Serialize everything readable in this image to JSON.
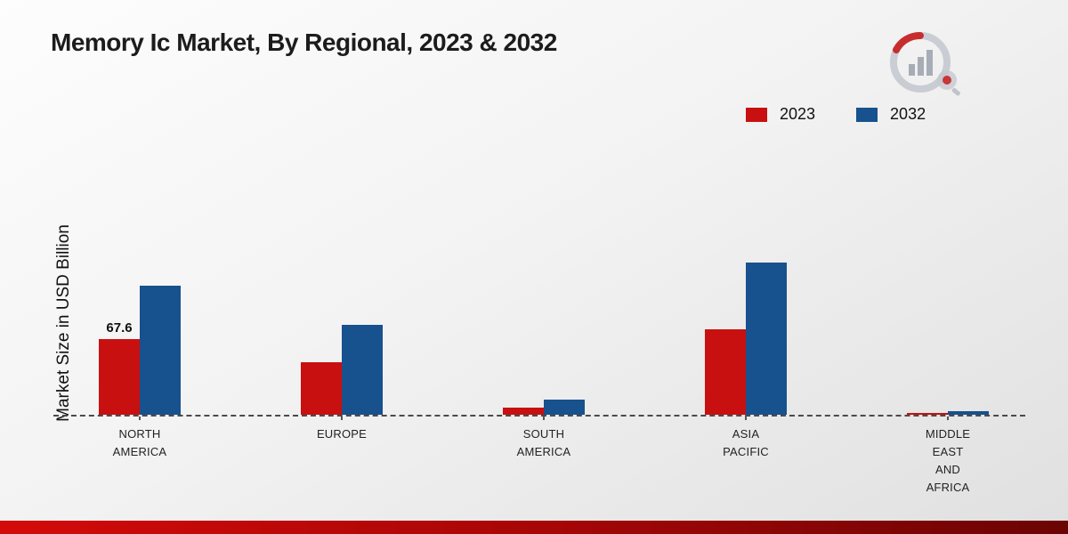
{
  "title": "Memory Ic Market, By Regional, 2023 & 2032",
  "ylabel": "Market Size in USD Billion",
  "legend": [
    {
      "label": "2023",
      "color": "#c81010"
    },
    {
      "label": "2032",
      "color": "#17518e"
    }
  ],
  "chart_data": {
    "type": "bar",
    "title": "Memory Ic Market, By Regional, 2023 & 2032",
    "ylabel": "Market Size in USD Billion",
    "xlabel": "",
    "categories": [
      "NORTH AMERICA",
      "EUROPE",
      "SOUTH AMERICA",
      "ASIA PACIFIC",
      "MIDDLE EAST AND AFRICA"
    ],
    "category_lines": [
      [
        "NORTH",
        "AMERICA"
      ],
      [
        "EUROPE"
      ],
      [
        "SOUTH",
        "AMERICA"
      ],
      [
        "ASIA",
        "PACIFIC"
      ],
      [
        "MIDDLE",
        "EAST",
        "AND",
        "AFRICA"
      ]
    ],
    "series": [
      {
        "name": "2023",
        "color": "#c81010",
        "values": [
          67.6,
          47,
          6.5,
          76.5,
          1.5
        ]
      },
      {
        "name": "2032",
        "color": "#17518e",
        "values": [
          115,
          80,
          13.5,
          136,
          3
        ]
      }
    ],
    "data_labels": [
      {
        "category_index": 0,
        "series_index": 0,
        "text": "67.6"
      }
    ],
    "ylim": [
      0,
      150
    ],
    "grid": false,
    "legend_position": "top-right",
    "baseline_style": "dashed"
  }
}
